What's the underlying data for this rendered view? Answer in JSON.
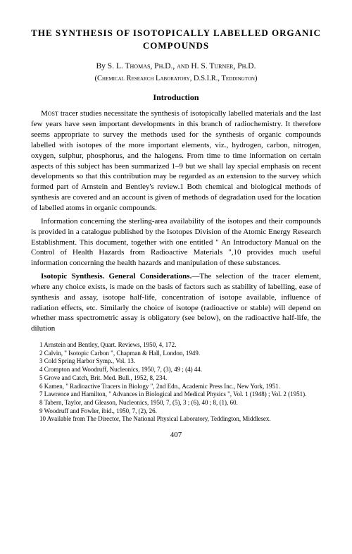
{
  "title": "THE SYNTHESIS OF ISOTOPICALLY LABELLED ORGANIC COMPOUNDS",
  "authors_prefix": "By ",
  "authors": "S. L. Thomas, Ph.D., and H. S. Turner, Ph.D.",
  "affiliation": "(Chemical Research Laboratory, D.S.I.R., Teddington)",
  "section_heading": "Introduction",
  "para1_lead": "Most",
  "para1_rest": " tracer studies necessitate the synthesis of isotopically labelled materials and the last few years have seen important developments in this branch of radiochemistry. It therefore seems appropriate to survey the methods used for the synthesis of organic compounds labelled with isotopes of the more important elements, viz., hydrogen, carbon, nitrogen, oxygen, sulphur, phosphorus, and the halogens. From time to time information on certain aspects of this subject has been summarized 1–9 but we shall lay special emphasis on recent developments so that this contribution may be regarded as an extension to the survey which formed part of Arnstein and Bentley's review.1 Both chemical and biological methods of synthesis are covered and an account is given of methods of degradation used for the location of labelled atoms in organic compounds.",
  "para2": "Information concerning the sterling-area availability of the isotopes and their compounds is provided in a catalogue published by the Isotopes Division of the Atomic Energy Research Establishment. This document, together with one entitled \" An Introductory Manual on the Control of Health Hazards from Radioactive Materials \",10 provides much useful information concerning the health hazards and manipulation of these substances.",
  "para3_head": "Isotopic Synthesis.   General Considerations.",
  "para3_rest": "—The selection of the tracer element, where any choice exists, is made on the basis of factors such as stability of labelling, ease of synthesis and assay, isotope half-life, concentration of isotope available, influence of radiation effects, etc. Similarly the choice of isotope (radioactive or stable) will depend on whether mass spectrometric assay is obligatory (see below), on the radioactive half-life, the dilution",
  "refs": [
    "1 Arnstein and Bentley, Quart. Reviews, 1950, 4, 172.",
    "2 Calvin, \" Isotopic Carbon \", Chapman & Hall, London, 1949.",
    "3 Cold Spring Harbor Symp., Vol. 13.",
    "4 Crompton and Woodruff, Nucleonics, 1950, 7, (3), 49 ; (4) 44.",
    "5 Grove and Catch, Brit. Med. Bull., 1952, 8, 234.",
    "6 Kamen, \" Radioactive Tracers in Biology \", 2nd Edn., Academic Press Inc., New York, 1951.",
    "7 Lawrence and Hamilton, \" Advances in Biological and Medical Physics \", Vol. 1 (1948) ; Vol. 2 (1951).",
    "8 Tabern, Taylor, and Gleason, Nucleonics, 1950, 7, (5), 3 ; (6), 40 ; 8, (1), 60.",
    "9 Woodruff and Fowler, ibid., 1950, 7, (2), 26.",
    "10 Available from The Director, The National Physical Laboratory, Teddington, Middlesex."
  ],
  "pagenum": "407"
}
